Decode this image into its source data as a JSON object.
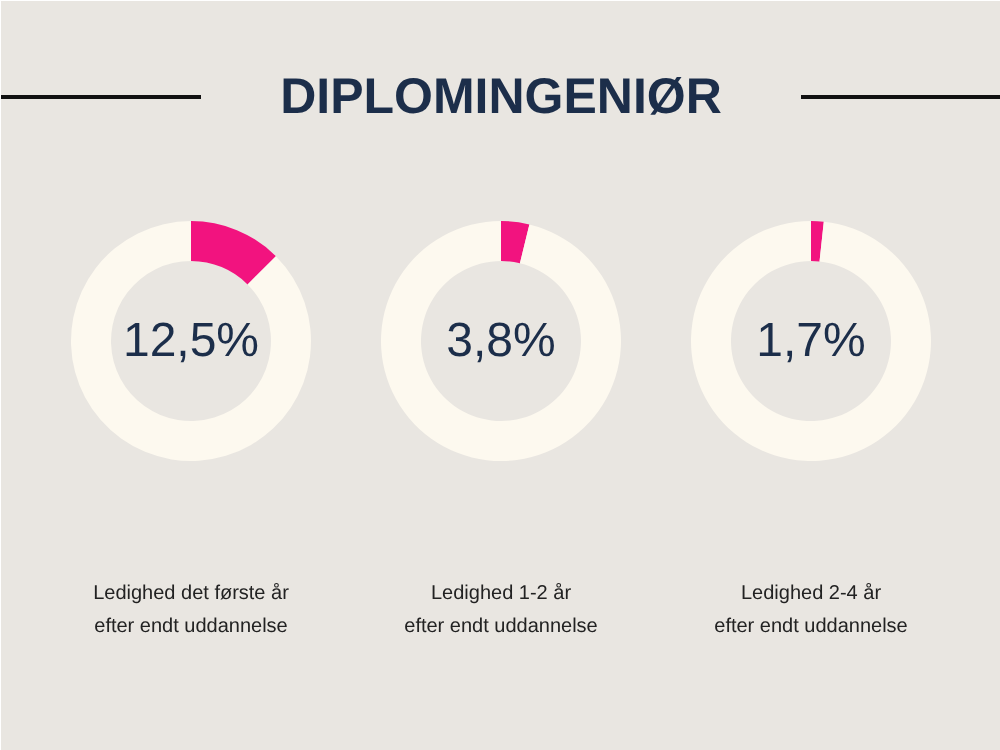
{
  "chart_data": [
    {
      "type": "other",
      "title": "DIPLOMINGENIØR"
    },
    {
      "type": "donut",
      "categories": [
        null,
        null
      ],
      "values": [
        12.5,
        87.5
      ],
      "colors": [
        "#f2137f",
        "#fdf9ef"
      ],
      "annotations": [
        "12,5%"
      ],
      "xlabel": "Ledighed det første år efter endt uddannelse"
    },
    {
      "type": "donut",
      "categories": [
        null,
        null
      ],
      "values": [
        3.8,
        96.2
      ],
      "colors": [
        "#f2137f",
        "#fdf9ef"
      ],
      "annotations": [
        "3,8%"
      ],
      "xlabel": "Ledighed 1-2 år efter endt uddannelse"
    },
    {
      "type": "donut",
      "categories": [
        null,
        null
      ],
      "values": [
        1.7,
        98.3
      ],
      "colors": [
        "#f2137f",
        "#fdf9ef"
      ],
      "annotations": [
        "1,7%"
      ],
      "xlabel": "Ledighed 2-4 år efter endt uddannelse"
    }
  ]
}
